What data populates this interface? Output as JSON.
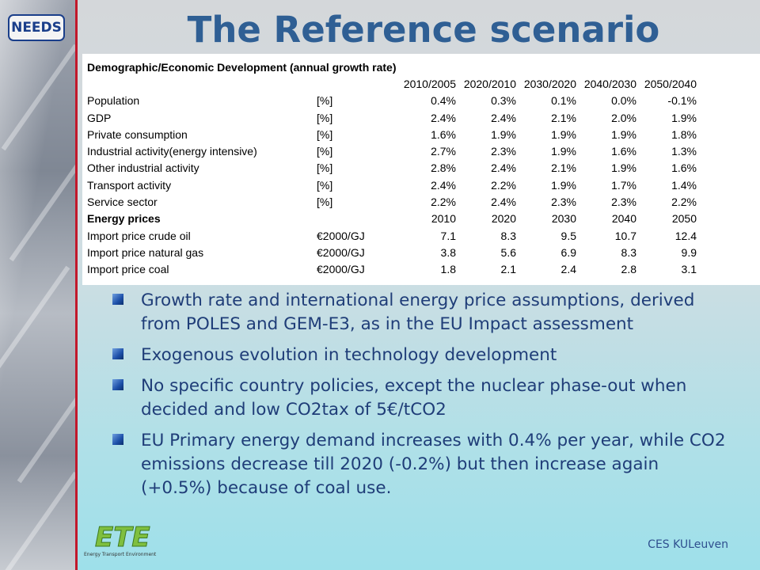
{
  "logo_text": "NEEDS",
  "title": "The Reference scenario",
  "table": {
    "section_title": "Demographic/Economic Development (annual growth rate)",
    "period_headers": [
      "2010/2005",
      "2020/2010",
      "2030/2020",
      "2040/2030",
      "2050/2040"
    ],
    "growth_rows": [
      {
        "label": "Population",
        "unit": "[%]",
        "values": [
          "0.4%",
          "0.3%",
          "0.1%",
          "0.0%",
          "-0.1%"
        ]
      },
      {
        "label": "GDP",
        "unit": "[%]",
        "values": [
          "2.4%",
          "2.4%",
          "2.1%",
          "2.0%",
          "1.9%"
        ]
      },
      {
        "label": "Private consumption",
        "unit": "[%]",
        "values": [
          "1.6%",
          "1.9%",
          "1.9%",
          "1.9%",
          "1.8%"
        ]
      },
      {
        "label": "Industrial activity(energy intensive)",
        "unit": "[%]",
        "values": [
          "2.7%",
          "2.3%",
          "1.9%",
          "1.6%",
          "1.3%"
        ]
      },
      {
        "label": "Other industrial activity",
        "unit": "[%]",
        "values": [
          "2.8%",
          "2.4%",
          "2.1%",
          "1.9%",
          "1.6%"
        ]
      },
      {
        "label": "Transport activity",
        "unit": "[%]",
        "values": [
          "2.4%",
          "2.2%",
          "1.9%",
          "1.7%",
          "1.4%"
        ]
      },
      {
        "label": "Service sector",
        "unit": "[%]",
        "values": [
          "2.2%",
          "2.4%",
          "2.3%",
          "2.3%",
          "2.2%"
        ]
      }
    ],
    "energy_prices_title": "Energy prices",
    "year_headers": [
      "2010",
      "2020",
      "2030",
      "2040",
      "2050"
    ],
    "price_rows": [
      {
        "label": "Import price crude oil",
        "unit": "€2000/GJ",
        "values": [
          "7.1",
          "8.3",
          "9.5",
          "10.7",
          "12.4"
        ]
      },
      {
        "label": "Import price natural gas",
        "unit": "€2000/GJ",
        "values": [
          "3.8",
          "5.6",
          "6.9",
          "8.3",
          "9.9"
        ]
      },
      {
        "label": "Import price coal",
        "unit": "€2000/GJ",
        "values": [
          "1.8",
          "2.1",
          "2.4",
          "2.8",
          "3.1"
        ]
      }
    ]
  },
  "bullets": [
    "Growth rate and international energy price assumptions, derived from POLES and GEM-E3, as in the EU Impact assessment",
    "Exogenous evolution in technology development",
    "No specific country policies, except the nuclear phase-out when decided and low CO2tax of 5€/tCO2",
    "EU Primary energy demand increases with 0.4% per year, while CO2 emissions decrease till 2020 (-0.2%) but then increase again (+0.5%) because of coal use."
  ],
  "footer": "CES KULeuven",
  "etf_logo_text": "ETE",
  "etf_logo_subtext": "Energy Transport Environment"
}
